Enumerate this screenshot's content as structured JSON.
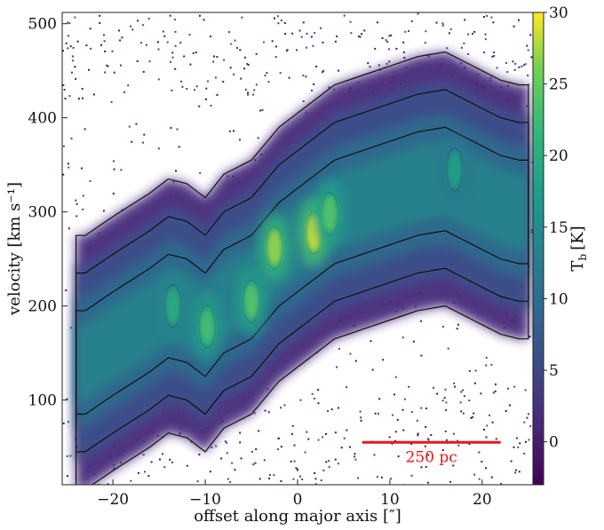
{
  "chart_data": {
    "type": "heatmap",
    "title": "",
    "xlabel": "offset along major axis [″]",
    "ylabel": "velocity [km s⁻¹]",
    "xlim": [
      -25.5,
      25.5
    ],
    "ylim": [
      10,
      512
    ],
    "x_ticks": [
      -20,
      -10,
      0,
      10,
      20
    ],
    "y_ticks": [
      100,
      200,
      300,
      400,
      500
    ],
    "colorbar": {
      "label": "T_b [K]",
      "label_main": "T",
      "label_sub": "b",
      "label_unit": "[K]",
      "colormap": "viridis",
      "range": [
        -3,
        30
      ],
      "ticks": [
        0,
        5,
        10,
        15,
        20,
        25,
        30
      ]
    },
    "ridge_x": [
      -23,
      -20,
      -16,
      -14,
      -12,
      -10,
      -8,
      -5,
      -2,
      0,
      2,
      4,
      7,
      10,
      13,
      16,
      19,
      22,
      24
    ],
    "ridge_v": [
      140,
      160,
      185,
      200,
      195,
      180,
      205,
      220,
      255,
      270,
      285,
      300,
      310,
      320,
      330,
      335,
      320,
      305,
      300
    ],
    "emission_peaks": [
      {
        "x": -13.5,
        "v": 200,
        "tb": 20
      },
      {
        "x": -9.8,
        "v": 178,
        "tb": 23
      },
      {
        "x": -5,
        "v": 205,
        "tb": 24
      },
      {
        "x": -2.5,
        "v": 262,
        "tb": 27
      },
      {
        "x": 1.8,
        "v": 278,
        "tb": 29
      },
      {
        "x": 3.5,
        "v": 298,
        "tb": 24
      },
      {
        "x": 17,
        "v": 345,
        "tb": 18
      }
    ],
    "contour_levels_k": [
      3,
      8,
      14,
      24
    ],
    "scale_bar": {
      "label": "250 pc",
      "x_start": 7,
      "x_end": 22,
      "v": 55,
      "color": "#e8161b"
    }
  }
}
